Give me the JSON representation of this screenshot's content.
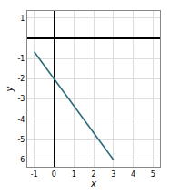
{
  "chart_data": {
    "type": "line",
    "x": [
      -1.0,
      3.0
    ],
    "values": [
      -0.6667,
      -6.0
    ],
    "color": "#2e6b7a",
    "xlabel": "x",
    "ylabel": "y",
    "xlim": [
      -1.35,
      5.35
    ],
    "ylim": [
      -6.35,
      1.35
    ],
    "xticks": [
      -1,
      0,
      1,
      2,
      3,
      4,
      5
    ],
    "yticks": [
      -6,
      -5,
      -4,
      -3,
      -2,
      -1,
      1
    ],
    "grid": true
  }
}
